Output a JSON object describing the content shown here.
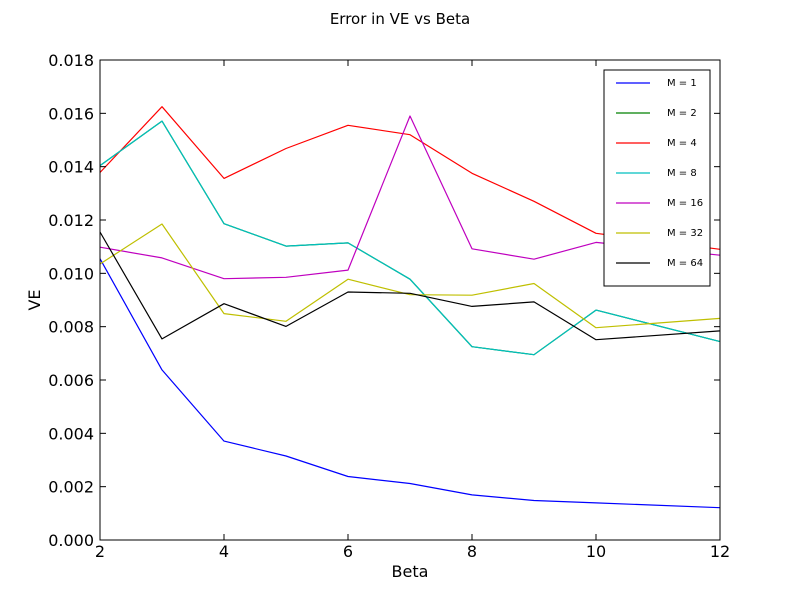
{
  "chart_data": {
    "type": "line",
    "title": "Error in VE vs Beta",
    "xlabel": "Beta",
    "ylabel": "VE",
    "xlim": [
      2,
      12
    ],
    "ylim": [
      0,
      0.018
    ],
    "x_ticks": [
      2,
      4,
      6,
      8,
      10,
      12
    ],
    "y_ticks": [
      0.0,
      0.002,
      0.004,
      0.006,
      0.008,
      0.01,
      0.012,
      0.014,
      0.016,
      0.018
    ],
    "x_tick_labels": [
      "2",
      "4",
      "6",
      "8",
      "10",
      "12"
    ],
    "y_tick_labels": [
      "0.000",
      "0.002",
      "0.004",
      "0.006",
      "0.008",
      "0.010",
      "0.012",
      "0.014",
      "0.016",
      "0.018"
    ],
    "grid": false,
    "legend_position": "top-right",
    "x": [
      2,
      3,
      4,
      5,
      6,
      7,
      8,
      9,
      10,
      12
    ],
    "series": [
      {
        "name": "M = 1",
        "color": "#0000ff",
        "values": [
          0.01055,
          0.00638,
          0.00371,
          0.00315,
          0.00238,
          0.00212,
          0.00169,
          0.00148,
          0.00139,
          0.00121
        ]
      },
      {
        "name": "M = 2",
        "color": "#008000",
        "values": [
          0.01404,
          0.01571,
          0.01186,
          0.01102,
          0.01114,
          0.00978,
          0.00725,
          0.00695,
          0.00862,
          0.00744
        ]
      },
      {
        "name": "M = 4",
        "color": "#ff0000",
        "values": [
          0.01378,
          0.01625,
          0.01356,
          0.01468,
          0.01555,
          0.0152,
          0.01375,
          0.0127,
          0.0115,
          0.0109
        ]
      },
      {
        "name": "M = 8",
        "color": "#00bfbf",
        "values": [
          0.01404,
          0.01571,
          0.01186,
          0.01102,
          0.01114,
          0.00978,
          0.00725,
          0.00695,
          0.00862,
          0.00744
        ]
      },
      {
        "name": "M = 16",
        "color": "#bf00bf",
        "values": [
          0.01098,
          0.01058,
          0.0098,
          0.00985,
          0.01012,
          0.0159,
          0.01092,
          0.01053,
          0.01116,
          0.01068
        ]
      },
      {
        "name": "M = 32",
        "color": "#bfbf00",
        "values": [
          0.01035,
          0.01185,
          0.00849,
          0.0082,
          0.00978,
          0.0092,
          0.00918,
          0.00962,
          0.00796,
          0.00831
        ]
      },
      {
        "name": "M = 64",
        "color": "#000000",
        "values": [
          0.01155,
          0.00754,
          0.00886,
          0.00801,
          0.0093,
          0.00925,
          0.00876,
          0.00893,
          0.00751,
          0.00784
        ]
      }
    ]
  }
}
